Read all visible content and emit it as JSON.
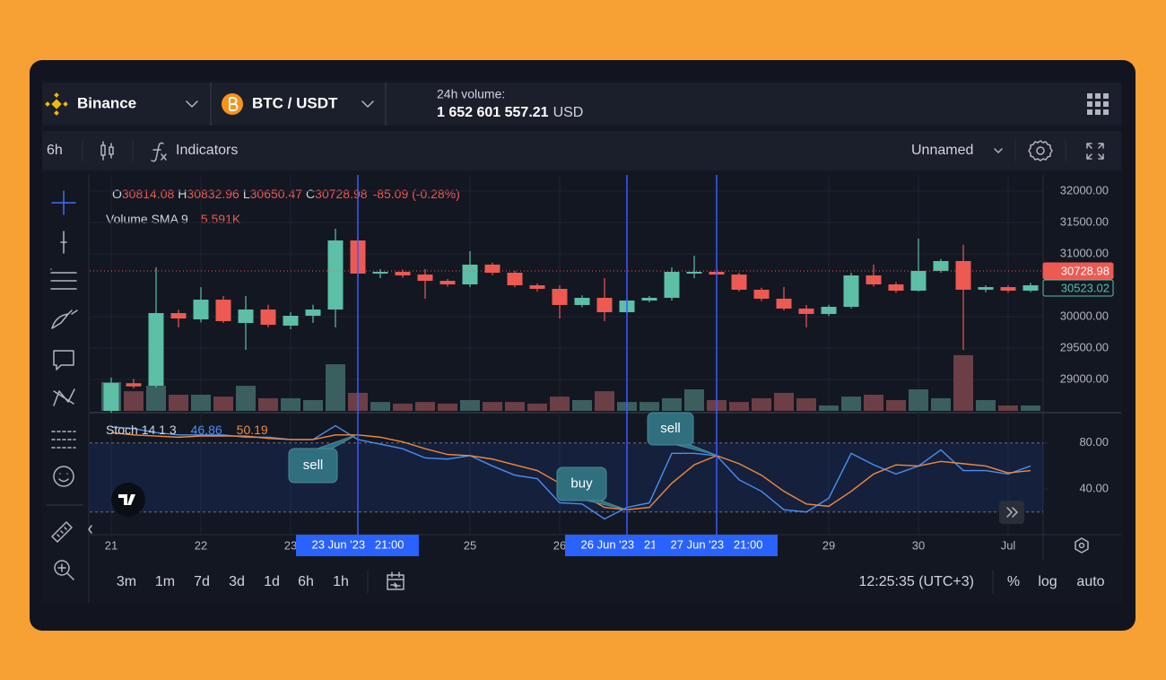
{
  "header": {
    "exchange": "Binance",
    "pair": "BTC / USDT",
    "volume_label": "24h volume:",
    "volume_value": "1 652 601 557.21",
    "volume_currency": "USD"
  },
  "toolbar": {
    "interval": "6h",
    "indicators": "Indicators",
    "layout": "Unnamed"
  },
  "legend": {
    "o_label": "O",
    "o": "30814.08",
    "h_label": "H",
    "h": "30832.96",
    "l_label": "L",
    "l": "30650.47",
    "c_label": "C",
    "c": "30728.98",
    "change": "-85.09 (-0.28%)",
    "volume_sma": "Volume SMA 9",
    "volume_sma_value": "5.591K"
  },
  "bottom": {
    "ranges": [
      "3m",
      "1m",
      "7d",
      "3d",
      "1d",
      "6h",
      "1h"
    ],
    "clock": "12:25:35 (UTC+3)",
    "options": [
      "%",
      "log",
      "auto"
    ]
  },
  "chart_data": {
    "type": "candlestick",
    "up_color": "#5cbfa6",
    "down_color": "#ec5a52",
    "volume_colors": {
      "up": "#3a5f5e",
      "down": "#6b3f45"
    },
    "open": [
      28500,
      28940,
      28900,
      30057,
      29957,
      30271,
      29900,
      30114,
      29857,
      30014,
      30114,
      31214,
      30686,
      30714,
      30671,
      30571,
      30514,
      30829,
      30700,
      30500,
      30443,
      30186,
      30300,
      30071,
      30257,
      30300,
      30686,
      30714,
      30671,
      30429,
      30286,
      30129,
      30043,
      30157,
      30657,
      30514,
      30414,
      30729,
      30886,
      30429,
      30471,
      30414
    ],
    "high": [
      29030,
      29010,
      30786,
      30110,
      30470,
      30330,
      30330,
      30190,
      30070,
      30190,
      31400,
      31300,
      30757,
      30750,
      30757,
      30600,
      31043,
      30860,
      30730,
      30530,
      30500,
      30340,
      30614,
      30290,
      30330,
      30786,
      30971,
      30760,
      30700,
      30460,
      30471,
      30186,
      30190,
      30700,
      30829,
      30550,
      31243,
      30920,
      31143,
      30500,
      30500,
      30540
    ],
    "low": [
      28470,
      28860,
      28870,
      29830,
      29910,
      29900,
      29471,
      29830,
      29800,
      29900,
      29829,
      30643,
      30614,
      30620,
      30286,
      30480,
      30470,
      30660,
      30470,
      30400,
      29971,
      30150,
      29929,
      30030,
      30230,
      30257,
      30614,
      30640,
      30400,
      30250,
      30100,
      29829,
      30010,
      30130,
      30480,
      30380,
      30400,
      30700,
      29471,
      30390,
      30380,
      30390
    ],
    "close": [
      28943,
      28890,
      30057,
      29971,
      30271,
      29929,
      30114,
      29871,
      30014,
      30114,
      31214,
      30686,
      30714,
      30657,
      30571,
      30514,
      30829,
      30700,
      30500,
      30443,
      30186,
      30300,
      30071,
      30257,
      30300,
      30714,
      30714,
      30671,
      30429,
      30286,
      30129,
      30043,
      30157,
      30657,
      30514,
      30414,
      30729,
      30886,
      30429,
      30471,
      30414,
      30500
    ],
    "volume": [
      10.7,
      7.3,
      9.3,
      6,
      6,
      5.3,
      9.3,
      4.7,
      4.7,
      4,
      17.3,
      6.7,
      3.3,
      2.7,
      3.3,
      2.7,
      4,
      3.3,
      3.3,
      2.7,
      5.3,
      4,
      7.3,
      3.3,
      3.3,
      4.7,
      8,
      4,
      3.3,
      4.7,
      6.7,
      4.7,
      2,
      5.3,
      6,
      4,
      8,
      4.7,
      20.7,
      4,
      2,
      2
    ],
    "ylim": [
      28500,
      32257
    ],
    "yticks": [
      {
        "value": 32000,
        "label": "32000.00"
      },
      {
        "value": 31500,
        "label": "31500.00"
      },
      {
        "value": 31000,
        "label": "31000.00"
      },
      {
        "value": 30000,
        "label": "30000.00"
      },
      {
        "value": 29500,
        "label": "29500.00"
      },
      {
        "value": 29000,
        "label": "29000.00"
      }
    ],
    "xticks": [
      {
        "value": 0,
        "label": "21"
      },
      {
        "value": 4,
        "label": "22"
      },
      {
        "value": 8,
        "label": "23"
      },
      {
        "value": 16,
        "label": "25"
      },
      {
        "value": 20,
        "label": "26"
      },
      {
        "value": 32,
        "label": "29"
      },
      {
        "value": 36,
        "label": "30"
      },
      {
        "value": 40,
        "label": "Jul"
      }
    ],
    "grid": true,
    "price_markers": [
      {
        "value": 30728.98,
        "color": "#ec5a52"
      },
      {
        "value": 30523.02,
        "color": "#5cbfa6"
      }
    ],
    "markers": [
      {
        "index": 11,
        "label": "23 Jun '23   21:00"
      },
      {
        "index": 23,
        "label": "26 Jun '23   21:00"
      },
      {
        "index": 27,
        "label": "27 Jun '23   21:00"
      }
    ],
    "annotations": [
      "sell",
      "buy",
      "sell"
    ],
    "stoch": {
      "title": "Stoch 14 1 3",
      "ylim": [
        5,
        104
      ],
      "yticks": [
        {
          "value": 80,
          "label": "80.00"
        },
        {
          "value": 40,
          "label": "40.00"
        }
      ],
      "band": [
        20,
        80
      ],
      "series": [
        {
          "value": 46.86,
          "color": "#4a8ff0",
          "values": [
            94,
            92.5,
            89,
            87,
            87,
            87,
            85,
            85,
            83,
            83,
            95,
            83,
            79,
            75,
            67,
            66,
            69,
            60,
            52,
            49,
            28,
            27,
            14,
            24,
            28,
            71,
            71,
            69,
            48,
            38,
            22,
            20,
            32,
            71,
            61,
            53,
            60,
            74,
            56,
            56,
            53,
            60
          ]
        },
        {
          "value": 50.19,
          "color": "#f08a3c",
          "values": [
            89,
            87,
            86,
            85,
            86,
            86,
            86,
            84,
            83,
            83,
            87,
            87,
            85,
            81,
            75,
            70,
            69,
            66,
            61,
            56,
            45,
            35,
            24,
            22,
            24,
            45,
            61,
            69,
            62,
            52,
            38,
            27,
            25,
            38,
            53,
            61,
            60,
            64,
            62,
            60,
            54,
            56
          ]
        }
      ]
    }
  }
}
